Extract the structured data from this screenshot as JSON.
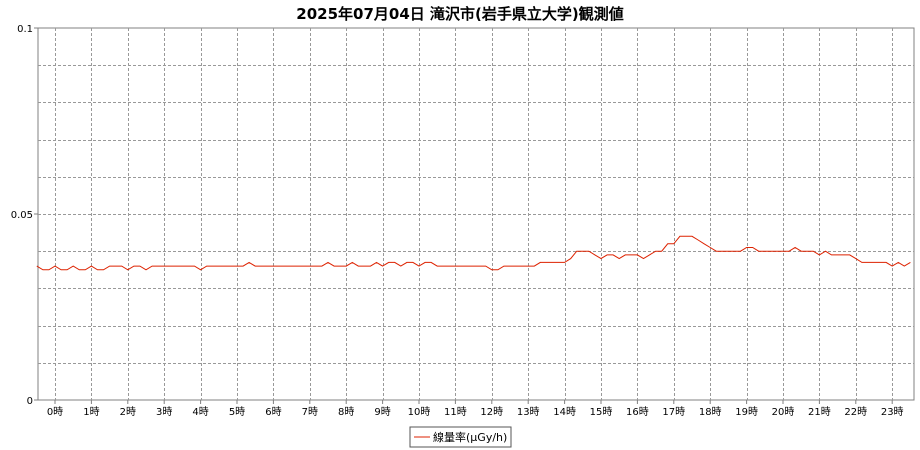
{
  "chart_data": {
    "type": "line",
    "title": "2025年07月04日 滝沢市(岩手県立大学)観測値",
    "xlabel": "",
    "ylabel": "",
    "ylim": [
      0,
      0.1
    ],
    "y_ticks": [
      "0",
      "0.05",
      "0.1"
    ],
    "x_ticks": [
      "0時",
      "1時",
      "2時",
      "3時",
      "4時",
      "5時",
      "6時",
      "7時",
      "8時",
      "9時",
      "10時",
      "11時",
      "12時",
      "13時",
      "14時",
      "15時",
      "16時",
      "17時",
      "18時",
      "19時",
      "20時",
      "21時",
      "22時",
      "23時"
    ],
    "grid": true,
    "legend_position": "bottom-center",
    "series": [
      {
        "name": "線量率(μGy/h)",
        "color": "#dd2200",
        "step_minutes": 10,
        "values": [
          0.036,
          0.035,
          0.035,
          0.036,
          0.035,
          0.035,
          0.036,
          0.035,
          0.035,
          0.036,
          0.035,
          0.035,
          0.036,
          0.036,
          0.036,
          0.035,
          0.036,
          0.036,
          0.035,
          0.036,
          0.036,
          0.036,
          0.036,
          0.036,
          0.036,
          0.036,
          0.036,
          0.035,
          0.036,
          0.036,
          0.036,
          0.036,
          0.036,
          0.036,
          0.036,
          0.037,
          0.036,
          0.036,
          0.036,
          0.036,
          0.036,
          0.036,
          0.036,
          0.036,
          0.036,
          0.036,
          0.036,
          0.036,
          0.037,
          0.036,
          0.036,
          0.036,
          0.037,
          0.036,
          0.036,
          0.036,
          0.037,
          0.036,
          0.037,
          0.037,
          0.036,
          0.037,
          0.037,
          0.036,
          0.037,
          0.037,
          0.036,
          0.036,
          0.036,
          0.036,
          0.036,
          0.036,
          0.036,
          0.036,
          0.036,
          0.035,
          0.035,
          0.036,
          0.036,
          0.036,
          0.036,
          0.036,
          0.036,
          0.037,
          0.037,
          0.037,
          0.037,
          0.037,
          0.038,
          0.04,
          0.04,
          0.04,
          0.039,
          0.038,
          0.039,
          0.039,
          0.038,
          0.039,
          0.039,
          0.039,
          0.038,
          0.039,
          0.04,
          0.04,
          0.042,
          0.042,
          0.044,
          0.044,
          0.044,
          0.043,
          0.042,
          0.041,
          0.04,
          0.04,
          0.04,
          0.04,
          0.04,
          0.041,
          0.041,
          0.04,
          0.04,
          0.04,
          0.04,
          0.04,
          0.04,
          0.041,
          0.04,
          0.04,
          0.04,
          0.039,
          0.04,
          0.039,
          0.039,
          0.039,
          0.039,
          0.038,
          0.037,
          0.037,
          0.037,
          0.037,
          0.037,
          0.036,
          0.037,
          0.036,
          0.037
        ]
      }
    ]
  },
  "colors": {
    "plot_background": "#ffffff",
    "grid": "#999999",
    "axis": "#808080"
  }
}
